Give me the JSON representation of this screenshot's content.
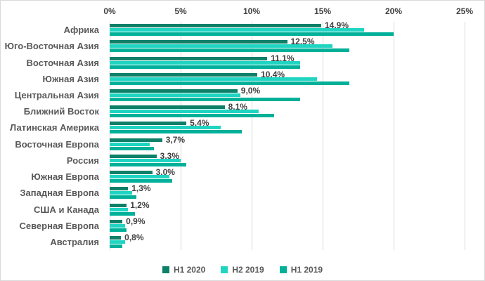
{
  "chart_data": {
    "type": "bar",
    "orientation": "horizontal",
    "title": "",
    "xlabel": "",
    "ylabel": "",
    "xlim": [
      0,
      25
    ],
    "x_ticks": [
      "0%",
      "5%",
      "10%",
      "15%",
      "20%",
      "25%"
    ],
    "x_tick_values": [
      0,
      5,
      10,
      15,
      20,
      25
    ],
    "grid": true,
    "legend_position": "bottom",
    "categories": [
      "Африка",
      "Юго-Восточная Азия",
      "Восточная Азия",
      "Южная Азия",
      "Центральная Азия",
      "Ближний Восток",
      "Латинская Америка",
      "Восточная Европа",
      "Россия",
      "Южная Европа",
      "Западная Европа",
      "США и Канада",
      "Северная Европа",
      "Австралия"
    ],
    "series": [
      {
        "name": "H1 2020",
        "color": "#0e8068",
        "values": [
          14.9,
          12.5,
          11.1,
          10.4,
          9.0,
          8.1,
          5.4,
          3.7,
          3.3,
          3.0,
          1.3,
          1.2,
          0.9,
          0.8
        ],
        "data_labels": [
          "14,9%",
          "12,5%",
          "11,1%",
          "10,4%",
          "9,0%",
          "8,1%",
          "5,4%",
          "3,7%",
          "3,3%",
          "3,0%",
          "1,3%",
          "1,2%",
          "0,9%",
          "0,8%"
        ]
      },
      {
        "name": "H2 2019",
        "color": "#1fd5c2",
        "values": [
          17.9,
          15.7,
          13.4,
          14.6,
          9.2,
          10.5,
          7.8,
          2.8,
          5.0,
          4.2,
          1.6,
          1.3,
          1.1,
          1.1
        ],
        "data_labels": null
      },
      {
        "name": "H1 2019",
        "color": "#00b099",
        "values": [
          20.0,
          16.9,
          13.4,
          16.9,
          13.4,
          11.6,
          9.3,
          3.1,
          5.4,
          4.4,
          1.9,
          1.8,
          1.2,
          0.9
        ],
        "data_labels": null
      }
    ],
    "colors": {
      "gridline": "#d9d9d9",
      "tick_text": "#404040",
      "category_text": "#595959",
      "value_label_text": "#404040",
      "background": "#ffffff"
    }
  }
}
